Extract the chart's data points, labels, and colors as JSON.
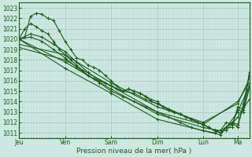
{
  "title": "",
  "xlabel": "Pression niveau de la mer( hPa )",
  "bg_color": "#cce8e0",
  "plot_bg_color": "#cce8e0",
  "line_color": "#1e5c1e",
  "grid_color_major": "#aaccc4",
  "grid_color_minor": "#c0ddd8",
  "ylim": [
    1010.5,
    1023.5
  ],
  "yticks": [
    1011,
    1012,
    1013,
    1014,
    1015,
    1016,
    1017,
    1018,
    1019,
    1020,
    1021,
    1022,
    1023
  ],
  "xtick_labels": [
    "Jeu",
    "Ven",
    "Sam",
    "Dim",
    "Lun",
    "Ma"
  ],
  "xtick_positions": [
    0,
    48,
    96,
    144,
    192,
    228
  ],
  "total_hours": 240,
  "series": [
    [
      0,
      1020.0,
      6,
      1020.2,
      12,
      1022.2,
      18,
      1022.5,
      24,
      1022.4,
      30,
      1022.0,
      36,
      1021.8,
      42,
      1020.8,
      48,
      1019.8,
      54,
      1019.0,
      60,
      1018.2,
      66,
      1018.0,
      72,
      1017.5,
      78,
      1017.3,
      84,
      1017.0,
      90,
      1016.5,
      96,
      1016.0,
      102,
      1015.5,
      108,
      1015.0,
      114,
      1015.2,
      120,
      1015.0,
      126,
      1014.8,
      132,
      1014.5,
      138,
      1014.2,
      144,
      1014.0,
      150,
      1013.5,
      156,
      1013.2,
      162,
      1013.0,
      168,
      1012.8,
      174,
      1012.5,
      180,
      1012.3,
      186,
      1012.0,
      192,
      1011.8,
      198,
      1011.5,
      204,
      1011.2,
      210,
      1011.0,
      216,
      1011.5,
      222,
      1012.0,
      228,
      1011.5,
      234,
      1013.8,
      240,
      1016.5
    ],
    [
      0,
      1020.0,
      6,
      1021.0,
      12,
      1021.5,
      18,
      1021.2,
      24,
      1020.8,
      30,
      1020.5,
      36,
      1019.8,
      42,
      1019.0,
      48,
      1018.5,
      54,
      1018.0,
      60,
      1017.5,
      66,
      1017.0,
      72,
      1016.5,
      78,
      1016.2,
      84,
      1016.0,
      90,
      1015.8,
      96,
      1015.5,
      102,
      1015.2,
      108,
      1015.0,
      114,
      1015.2,
      120,
      1015.0,
      126,
      1014.8,
      132,
      1014.5,
      138,
      1014.0,
      144,
      1013.8,
      150,
      1013.5,
      156,
      1013.2,
      162,
      1013.0,
      168,
      1012.8,
      174,
      1012.5,
      180,
      1012.3,
      186,
      1012.0,
      192,
      1011.8,
      198,
      1011.5,
      204,
      1011.2,
      210,
      1011.0,
      216,
      1011.5,
      222,
      1012.0,
      228,
      1011.8,
      234,
      1013.5,
      240,
      1015.5
    ],
    [
      0,
      1020.0,
      12,
      1020.5,
      24,
      1020.2,
      36,
      1019.5,
      48,
      1018.8,
      60,
      1017.8,
      72,
      1016.8,
      84,
      1016.0,
      96,
      1015.5,
      108,
      1015.0,
      120,
      1014.8,
      132,
      1014.2,
      144,
      1013.8,
      156,
      1013.3,
      168,
      1012.8,
      180,
      1012.3,
      192,
      1011.8,
      204,
      1011.2,
      216,
      1011.2,
      228,
      1012.5,
      240,
      1014.2
    ],
    [
      0,
      1020.0,
      12,
      1020.2,
      24,
      1019.8,
      36,
      1019.0,
      48,
      1018.2,
      60,
      1017.3,
      72,
      1016.5,
      84,
      1015.8,
      96,
      1015.0,
      108,
      1014.5,
      120,
      1014.0,
      132,
      1013.5,
      144,
      1013.0,
      156,
      1012.5,
      168,
      1012.0,
      180,
      1011.5,
      192,
      1011.2,
      204,
      1011.0,
      216,
      1011.5,
      228,
      1013.0,
      240,
      1015.5
    ],
    [
      0,
      1020.0,
      48,
      1017.8,
      96,
      1015.2,
      144,
      1012.8,
      192,
      1011.5,
      210,
      1011.2,
      216,
      1012.0,
      222,
      1011.8,
      228,
      1013.2,
      234,
      1013.0,
      240,
      1016.8
    ],
    [
      0,
      1020.0,
      48,
      1017.2,
      96,
      1014.8,
      144,
      1012.3,
      192,
      1011.2,
      210,
      1010.8,
      216,
      1011.5,
      222,
      1011.5,
      228,
      1013.5,
      234,
      1013.2,
      240,
      1015.2
    ],
    [
      0,
      1019.5,
      48,
      1018.5,
      96,
      1015.8,
      144,
      1013.5,
      192,
      1012.0,
      228,
      1013.8,
      240,
      1016.2
    ],
    [
      0,
      1019.2,
      48,
      1018.0,
      96,
      1015.5,
      144,
      1013.0,
      192,
      1011.8,
      228,
      1014.0,
      240,
      1015.8
    ]
  ]
}
